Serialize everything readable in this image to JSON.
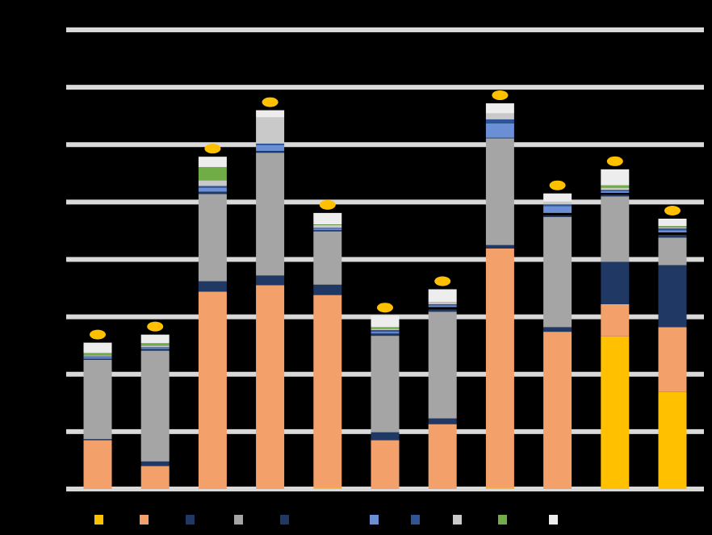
{
  "chart_data": {
    "type": "bar",
    "stacked": true,
    "title": "",
    "xlabel": "",
    "ylabel": "",
    "ylim": [
      0,
      8
    ],
    "grid": true,
    "legend_position": "bottom",
    "categories": [
      "",
      "",
      "",
      "",
      "",
      "",
      "",
      "",
      "",
      "",
      ""
    ],
    "series": [
      {
        "name": "",
        "color": "#FFC000",
        "values": [
          0,
          0,
          0,
          0,
          0.02,
          0,
          0,
          0.02,
          0,
          2.66,
          1.69
        ]
      },
      {
        "name": "",
        "color": "#F4A06A",
        "values": [
          0.85,
          0.4,
          3.44,
          3.55,
          3.36,
          0.85,
          1.13,
          4.17,
          2.74,
          0.56,
          1.13
        ]
      },
      {
        "name": "",
        "color": "#1F3864",
        "values": [
          0.02,
          0.08,
          0.18,
          0.17,
          0.18,
          0.14,
          0.1,
          0.06,
          0.08,
          0.74,
          1.08
        ]
      },
      {
        "name": "",
        "color": "#A5A5A5",
        "values": [
          1.38,
          1.93,
          1.52,
          2.14,
          0.93,
          1.68,
          1.86,
          1.86,
          1.92,
          1.14,
          0.48
        ]
      },
      {
        "name": "",
        "color": "#203864",
        "values": [
          0.02,
          0.03,
          0.04,
          0.03,
          0.02,
          0.04,
          0.04,
          0.01,
          0.03,
          0.03,
          0.05
        ]
      },
      {
        "name": "",
        "color": "#000000",
        "values": [
          0,
          0,
          0,
          0,
          0,
          0,
          0.04,
          0,
          0.04,
          0.03,
          0.04
        ]
      },
      {
        "name": "",
        "color": "#6A8FD4",
        "values": [
          0.03,
          0.02,
          0.07,
          0.1,
          0.03,
          0.03,
          0.03,
          0.25,
          0.12,
          0.03,
          0.04
        ]
      },
      {
        "name": "",
        "color": "#2E5597",
        "values": [
          0.01,
          0.01,
          0.03,
          0.03,
          0.01,
          0.03,
          0.02,
          0.07,
          0.03,
          0.02,
          0.03
        ]
      },
      {
        "name": "",
        "color": "#C9C9C9",
        "values": [
          0.02,
          0.03,
          0.1,
          0.45,
          0.05,
          0.02,
          0.04,
          0.1,
          0.05,
          0.04,
          0.02
        ]
      },
      {
        "name": "",
        "color": "#70AD47",
        "values": [
          0.04,
          0.04,
          0.23,
          0,
          0.01,
          0.03,
          0,
          0,
          0,
          0.04,
          0.02
        ]
      },
      {
        "name": "",
        "color": "#EDEDED",
        "values": [
          0.18,
          0.15,
          0.18,
          0.13,
          0.2,
          0.2,
          0.22,
          0.18,
          0.14,
          0.28,
          0.13
        ]
      }
    ],
    "top_marker_color": "#FFC000"
  }
}
